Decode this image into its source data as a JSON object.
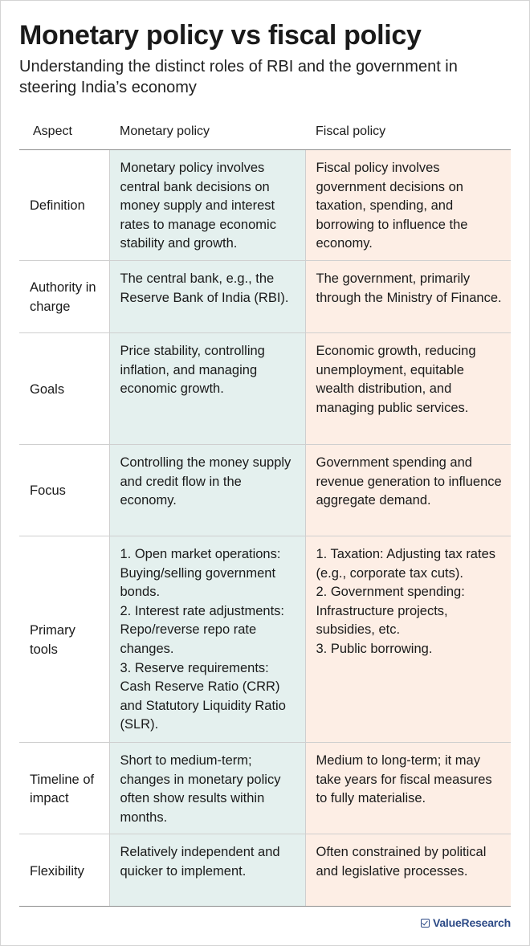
{
  "title": "Monetary policy vs fiscal policy",
  "subtitle": "Understanding the distinct roles of RBI and the government in steering India’s economy",
  "colors": {
    "monetary_bg": "#e4f0ee",
    "fiscal_bg": "#fdeee5",
    "brand": "#2c4a86"
  },
  "table": {
    "headers": [
      "Aspect",
      "Monetary policy",
      "Fiscal policy"
    ],
    "rows": [
      {
        "aspect": "Definition",
        "monetary": "Monetary policy involves central bank decisions on money supply and interest rates to manage economic stability and growth.",
        "fiscal": "Fiscal policy involves government decisions on taxation, spending, and borrowing to influence the economy."
      },
      {
        "aspect": "Authority in charge",
        "monetary": "The central bank, e.g., the Reserve Bank of India (RBI).",
        "fiscal": "The government, primarily through the Ministry of Finance."
      },
      {
        "aspect": "Goals",
        "monetary": "Price stability, controlling inflation, and managing economic growth.",
        "fiscal": "Economic growth, reducing unemployment, equitable wealth distribution, and managing public services."
      },
      {
        "aspect": "Focus",
        "monetary": "Controlling the money supply and credit flow in the economy.",
        "fiscal": "Government spending and revenue generation to influence aggregate demand."
      },
      {
        "aspect": "Primary tools",
        "monetary": "1. Open market operations: Buying/selling government bonds.\n2. Interest rate adjustments: Repo/reverse repo rate changes.\n3. Reserve requirements: Cash Reserve Ratio (CRR) and Statutory Liquidity Ratio (SLR).",
        "fiscal": "1. Taxation: Adjusting tax rates (e.g., corporate tax cuts).\n2. Government spending: Infrastructure projects, subsidies, etc.\n3. Public borrowing."
      },
      {
        "aspect": "Timeline of impact",
        "monetary": "Short to medium-term; changes in monetary policy often show results within months.",
        "fiscal": "Medium to long-term; it may take years for fiscal measures to fully materialise."
      },
      {
        "aspect": "Flexibility",
        "monetary": "Relatively independent and quicker to implement.",
        "fiscal": "Often constrained by political and legislative processes."
      }
    ]
  },
  "logo": {
    "text": "ValueResearch",
    "icon": "check-box-icon"
  }
}
